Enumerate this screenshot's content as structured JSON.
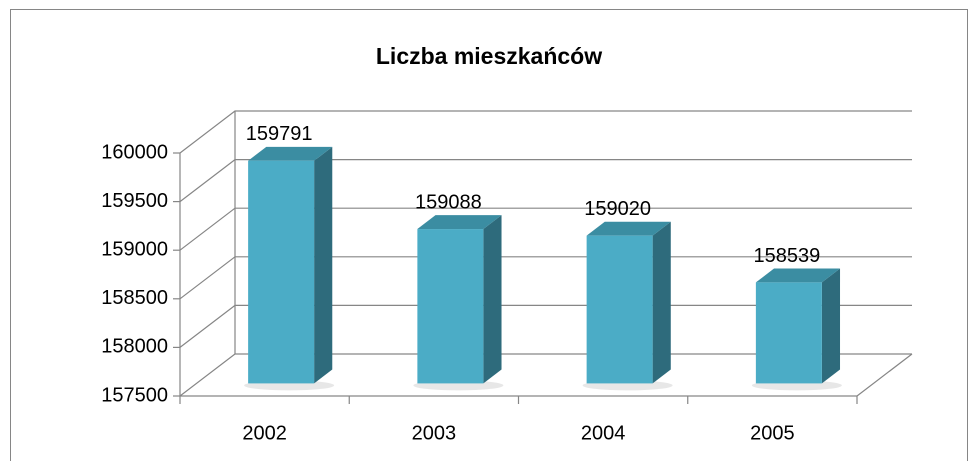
{
  "chart_data": {
    "type": "bar",
    "title": "Liczba mieszkańców",
    "categories": [
      "2002",
      "2003",
      "2004",
      "2005"
    ],
    "values": [
      159791,
      159088,
      159020,
      158539
    ],
    "color": "#4bacc6",
    "ylim": [
      157500,
      160000
    ],
    "yticks": [
      157500,
      158000,
      158500,
      159000,
      159500,
      160000
    ],
    "grid": true
  }
}
